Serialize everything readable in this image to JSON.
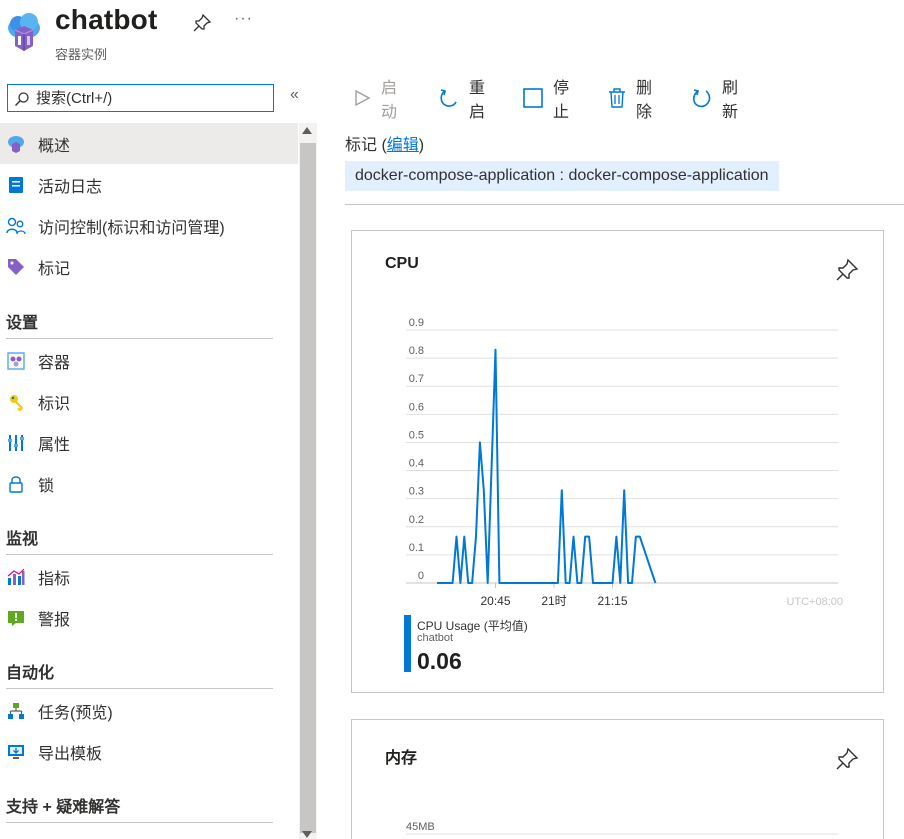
{
  "header": {
    "title": "chatbot",
    "subtitle": "容器实例",
    "icon": "container-instance-icon"
  },
  "sidebar": {
    "search_placeholder": "搜索(Ctrl+/)",
    "items_top": [
      {
        "label": "概述",
        "icon": "overview-icon",
        "active": true
      },
      {
        "label": "活动日志",
        "icon": "activity-log-icon"
      },
      {
        "label": "访问控制(标识和访问管理)",
        "icon": "access-control-icon"
      },
      {
        "label": "标记",
        "icon": "tag-icon"
      }
    ],
    "sections": [
      {
        "title": "设置",
        "items": [
          {
            "label": "容器",
            "icon": "containers-icon"
          },
          {
            "label": "标识",
            "icon": "identity-icon"
          },
          {
            "label": "属性",
            "icon": "properties-icon"
          },
          {
            "label": "锁",
            "icon": "lock-icon"
          }
        ]
      },
      {
        "title": "监视",
        "items": [
          {
            "label": "指标",
            "icon": "metrics-icon"
          },
          {
            "label": "警报",
            "icon": "alerts-icon"
          }
        ]
      },
      {
        "title": "自动化",
        "items": [
          {
            "label": "任务(预览)",
            "icon": "tasks-icon"
          },
          {
            "label": "导出模板",
            "icon": "export-template-icon"
          }
        ]
      },
      {
        "title": "支持 + 疑难解答",
        "items": []
      }
    ]
  },
  "toolbar": {
    "start": "启动",
    "restart": "重启",
    "stop": "停止",
    "delete": "删除",
    "refresh": "刷新"
  },
  "tags": {
    "label": "标记 (",
    "edit": "编辑",
    "label_end": ")",
    "pill": "docker-compose-application : docker-compose-application"
  },
  "cpu_tile": {
    "title": "CPU",
    "legend_name": "CPU Usage (平均值)",
    "legend_sub": "chatbot",
    "legend_value": "0.06"
  },
  "memory_tile": {
    "title": "内存",
    "first_tick": "45MB"
  },
  "chart_data": {
    "type": "line",
    "title": "CPU",
    "xlabel": "",
    "ylabel": "",
    "x_tick_labels": [
      "20:45",
      "21时",
      "21:15"
    ],
    "timezone_label": "UTC+08:00",
    "y_ticks": [
      "0",
      "0.1",
      "0.2",
      "0.3",
      "0.4",
      "0.5",
      "0.6",
      "0.7",
      "0.8",
      "0.9"
    ],
    "ylim": [
      0,
      0.9
    ],
    "grid": true,
    "series": [
      {
        "name": "CPU Usage (平均值)",
        "color": "#0078d4",
        "x_minutes_after_2030": [
          0,
          4,
          5,
          6,
          7,
          8,
          9,
          10,
          11,
          12,
          13,
          15,
          16,
          17,
          18,
          19,
          31,
          32,
          33,
          34,
          35,
          36,
          37,
          38,
          39,
          40,
          41,
          45,
          46,
          47,
          48,
          49,
          50,
          51,
          52,
          56
        ],
        "values": [
          0,
          0,
          0.165,
          0,
          0.165,
          0,
          0,
          0.165,
          0.5,
          0.33,
          0,
          0.83,
          0,
          0,
          0,
          0,
          0,
          0.33,
          0,
          0,
          0.165,
          0,
          0,
          0.165,
          0.165,
          0,
          0,
          0,
          0.165,
          0,
          0.33,
          0,
          0,
          0.165,
          0.165,
          0
        ]
      }
    ]
  }
}
